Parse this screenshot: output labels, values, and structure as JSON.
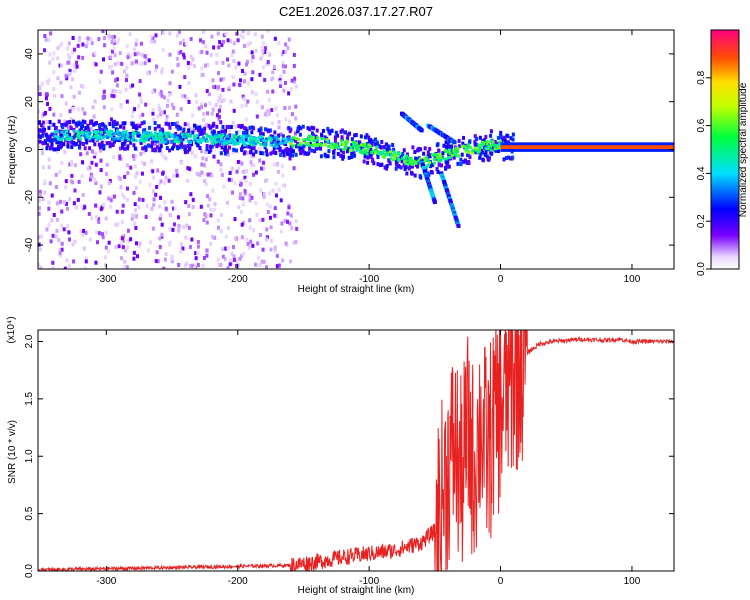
{
  "title": "C2E1.2026.037.17.27.R07",
  "chart_data": [
    {
      "type": "heatmap",
      "title": "C2E1.2026.037.17.27.R07",
      "xlabel": "Height of straight line (km)",
      "ylabel": "Frequency (Hz)",
      "xlim": [
        -352,
        132
      ],
      "ylim": [
        -50,
        50
      ],
      "xticks": [
        -300,
        -200,
        -100,
        0,
        100
      ],
      "xtick_labels": [
        "-300",
        "-200",
        "-100",
        "0",
        "100"
      ],
      "yticks": [
        -40,
        -20,
        0,
        20,
        40
      ],
      "ytick_labels": [
        "-40",
        "-20",
        "0",
        "20",
        "40"
      ],
      "ridge": {
        "x": [
          -350,
          -300,
          -250,
          -200,
          -160,
          -150,
          -120,
          -100,
          -80,
          -60,
          -45,
          -35,
          -25,
          -15,
          -5,
          5,
          50,
          100,
          130
        ],
        "y": [
          6,
          6,
          5,
          4,
          3,
          4,
          2,
          0,
          -3,
          -6,
          -3,
          -1,
          0,
          1,
          2,
          1,
          1,
          1,
          1
        ]
      },
      "colorbar": {
        "label": "Normalized spectral amplitude",
        "range": [
          0,
          1
        ],
        "ticks": [
          0.0,
          0.2,
          0.4,
          0.6,
          0.8
        ],
        "tick_labels": [
          "0.0",
          "0.2",
          "0.4",
          "0.6",
          "0.8"
        ]
      }
    },
    {
      "type": "line",
      "xlabel": "Height of straight line (km)",
      "ylabel": "SNR (10 * v/v)",
      "multiplier": "(x10⁴)",
      "xlim": [
        -352,
        132
      ],
      "ylim": [
        0,
        2.1
      ],
      "xticks": [
        -300,
        -200,
        -100,
        0,
        100
      ],
      "xtick_labels": [
        "-300",
        "-200",
        "-100",
        "0",
        "100"
      ],
      "yticks": [
        0.0,
        0.5,
        1.0,
        1.5,
        2.0
      ],
      "ytick_labels": [
        "0.0",
        "0.5",
        "1.0",
        "1.5",
        "2.0"
      ],
      "series": [
        {
          "name": "SNR",
          "color": "#e82020",
          "x": [
            -352,
            -300,
            -250,
            -200,
            -160,
            -140,
            -120,
            -100,
            -80,
            -60,
            -50,
            -45,
            -40,
            -35,
            -30,
            -25,
            -20,
            -15,
            -10,
            -5,
            0,
            5,
            10,
            15,
            20,
            30,
            40,
            60,
            80,
            90,
            100,
            120,
            132
          ],
          "y": [
            0.01,
            0.02,
            0.03,
            0.04,
            0.05,
            0.08,
            0.12,
            0.15,
            0.18,
            0.25,
            0.35,
            0.6,
            0.9,
            1.1,
            0.8,
            1.2,
            0.9,
            1.3,
            1.0,
            1.3,
            1.4,
            1.6,
            1.7,
            1.8,
            1.9,
            1.98,
            2.0,
            2.02,
            2.01,
            2.02,
            2.0,
            2.0,
            2.0
          ]
        }
      ]
    }
  ]
}
